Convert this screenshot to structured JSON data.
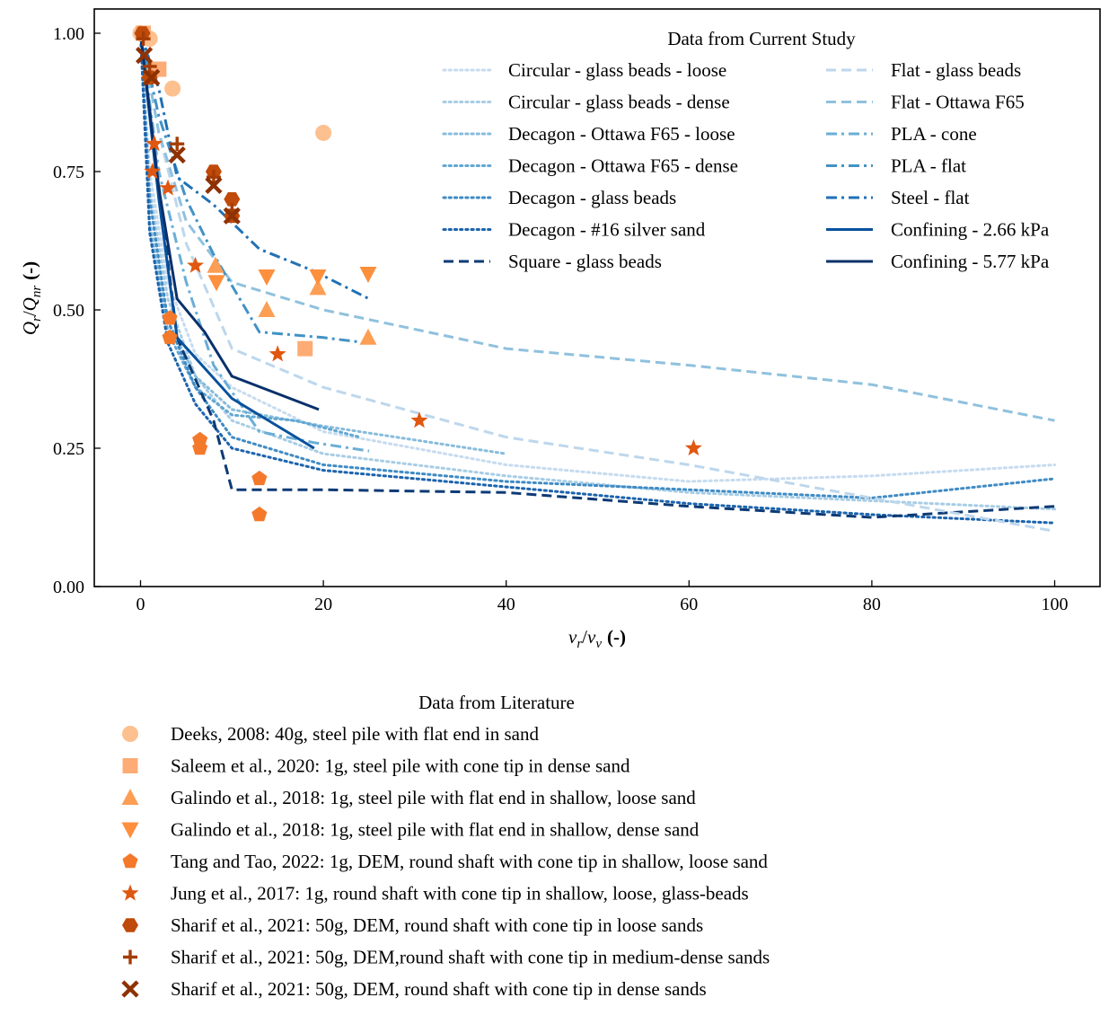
{
  "chart_data": {
    "type": "line",
    "xlabel": {
      "math": "v",
      "sub1": "r",
      "slash": "/",
      "math2": "v",
      "sub2": "v",
      "unit": "(-)"
    },
    "ylabel": {
      "math": "Q",
      "sub1": "r",
      "slash": "/",
      "math2": "Q",
      "sub2": "nr",
      "unit": "(-)"
    },
    "xlim": [
      -5,
      105
    ],
    "ylim": [
      0,
      1.04
    ],
    "xticks": [
      0,
      20,
      40,
      60,
      80,
      100
    ],
    "xtick_labels": [
      "0",
      "20",
      "40",
      "60",
      "80",
      "100"
    ],
    "yticks": [
      0.0,
      0.25,
      0.5,
      0.75,
      1.0
    ],
    "ytick_labels": [
      "0.00",
      "0.25",
      "0.50",
      "0.75",
      "1.00"
    ],
    "legend_current": {
      "title": "Data from Current Study",
      "placement": "top-right"
    },
    "legend_literature": {
      "title": "Data from Literature",
      "placement": "below"
    },
    "series": [
      {
        "name": "Circular - glass beads - loose",
        "color": "#c6dbef",
        "style": "dotted",
        "x": [
          0,
          1,
          3,
          6,
          10,
          20,
          40,
          60,
          80,
          100
        ],
        "y": [
          1.0,
          0.75,
          0.55,
          0.42,
          0.36,
          0.28,
          0.22,
          0.19,
          0.2,
          0.22
        ]
      },
      {
        "name": "Circular - glass beads - dense",
        "color": "#a7cde5",
        "style": "dotted",
        "x": [
          0,
          1,
          3,
          6,
          10,
          20,
          40,
          60,
          80,
          100
        ],
        "y": [
          1.0,
          0.72,
          0.52,
          0.38,
          0.3,
          0.24,
          0.2,
          0.17,
          0.155,
          0.14
        ]
      },
      {
        "name": "Decagon - Ottawa F65 - loose",
        "color": "#86bcdc",
        "style": "dotted",
        "x": [
          0,
          1,
          3,
          6,
          10,
          20,
          40
        ],
        "y": [
          1.0,
          0.66,
          0.48,
          0.38,
          0.32,
          0.29,
          0.24
        ]
      },
      {
        "name": "Decagon - Ottawa F65 - dense",
        "color": "#62a7d3",
        "style": "dotted",
        "x": [
          0,
          1,
          3,
          6,
          10,
          17,
          24
        ],
        "y": [
          1.0,
          0.64,
          0.46,
          0.36,
          0.31,
          0.3,
          0.27
        ]
      },
      {
        "name": "Decagon - glass beads",
        "color": "#3f8bc4",
        "style": "dotted",
        "x": [
          0,
          1,
          3,
          6,
          10,
          20,
          40,
          60,
          80,
          100
        ],
        "y": [
          1.0,
          0.7,
          0.48,
          0.36,
          0.27,
          0.22,
          0.19,
          0.175,
          0.16,
          0.195
        ]
      },
      {
        "name": "Decagon - #16 silver sand",
        "color": "#1c64ad",
        "style": "dotted",
        "x": [
          0,
          1,
          3,
          6,
          10,
          20,
          40,
          60,
          80,
          100
        ],
        "y": [
          1.0,
          0.64,
          0.44,
          0.33,
          0.25,
          0.21,
          0.18,
          0.15,
          0.13,
          0.115
        ]
      },
      {
        "name": "Square - glass beads",
        "color": "#0c3a75",
        "style": "dashed",
        "x": [
          0,
          4,
          8,
          10,
          20,
          40,
          60,
          80,
          100
        ],
        "y": [
          1.0,
          0.45,
          0.3,
          0.175,
          0.175,
          0.17,
          0.145,
          0.125,
          0.145
        ]
      },
      {
        "name": "Flat - glass beads",
        "color": "#bdd7ec",
        "style": "dashed",
        "x": [
          0,
          2,
          5,
          10,
          20,
          40,
          60,
          80,
          100
        ],
        "y": [
          1.0,
          0.82,
          0.62,
          0.43,
          0.36,
          0.27,
          0.22,
          0.16,
          0.1
        ]
      },
      {
        "name": "Flat - Ottawa F65",
        "color": "#8fc1de",
        "style": "dashed",
        "x": [
          0,
          2,
          5,
          10,
          20,
          40,
          60,
          80,
          100
        ],
        "y": [
          1.0,
          0.82,
          0.66,
          0.55,
          0.5,
          0.43,
          0.4,
          0.365,
          0.3
        ]
      },
      {
        "name": "PLA - cone",
        "color": "#6aaed6",
        "style": "dashdot",
        "x": [
          0,
          2,
          5,
          8,
          13,
          19,
          25
        ],
        "y": [
          1.0,
          0.75,
          0.55,
          0.4,
          0.28,
          0.26,
          0.245
        ]
      },
      {
        "name": "PLA - flat",
        "color": "#4292c6",
        "style": "dashdot",
        "x": [
          0,
          2,
          5,
          8,
          13,
          20,
          25
        ],
        "y": [
          1.0,
          0.85,
          0.7,
          0.6,
          0.46,
          0.45,
          0.44
        ]
      },
      {
        "name": "Steel - flat",
        "color": "#2171b5",
        "style": "dashdot",
        "x": [
          0,
          2,
          4,
          8,
          13,
          19,
          25
        ],
        "y": [
          1.0,
          0.9,
          0.74,
          0.69,
          0.61,
          0.57,
          0.52
        ]
      },
      {
        "name": "Confining - 2.66 kPa",
        "color": "#08519c",
        "style": "solid",
        "x": [
          0,
          2,
          4,
          10,
          19
        ],
        "y": [
          1.0,
          0.7,
          0.45,
          0.34,
          0.25
        ]
      },
      {
        "name": "Confining - 5.77 kPa",
        "color": "#08306b",
        "style": "solid",
        "x": [
          0,
          2,
          4,
          7,
          10,
          19.5
        ],
        "y": [
          1.0,
          0.72,
          0.52,
          0.46,
          0.38,
          0.32
        ]
      }
    ],
    "scatter_series": [
      {
        "name": "Deeks, 2008: 40g, steel pile with flat end in sand",
        "marker": "circle",
        "color": "#fdc08f",
        "points": [
          [
            0,
            1.0
          ],
          [
            1,
            0.99
          ],
          [
            3.5,
            0.9
          ],
          [
            20,
            0.82
          ]
        ]
      },
      {
        "name": "Saleem et al., 2020: 1g, steel pile with cone tip in dense sand",
        "marker": "square",
        "color": "#fdac75",
        "points": [
          [
            0.3,
            1.0
          ],
          [
            2,
            0.935
          ],
          [
            18,
            0.43
          ]
        ]
      },
      {
        "name": "Galindo et al., 2018: 1g, steel pile with flat end in shallow, loose sand",
        "marker": "triangle-up",
        "color": "#fd9e55",
        "points": [
          [
            8.2,
            0.58
          ],
          [
            13.8,
            0.5
          ],
          [
            19.4,
            0.54
          ],
          [
            24.9,
            0.45
          ]
        ]
      },
      {
        "name": "Galindo et al., 2018: 1g, steel pile with flat end in shallow, dense sand",
        "marker": "triangle-down",
        "color": "#fd8f3d",
        "points": [
          [
            8.3,
            0.55
          ],
          [
            13.8,
            0.56
          ],
          [
            19.4,
            0.56
          ],
          [
            24.9,
            0.565
          ]
        ]
      },
      {
        "name": "Tang and Tao, 2022: 1g, DEM, round shaft with cone tip in shallow, loose sand",
        "marker": "pentagon",
        "color": "#f4792a",
        "points": [
          [
            3.2,
            0.485
          ],
          [
            3.2,
            0.45
          ],
          [
            6.5,
            0.265
          ],
          [
            6.5,
            0.25
          ],
          [
            13,
            0.195
          ],
          [
            13,
            0.13
          ]
        ]
      },
      {
        "name": "Jung et al., 2017: 1g, round shaft with cone tip in shallow, loose, glass-beads",
        "marker": "star",
        "color": "#e05710",
        "points": [
          [
            1.5,
            0.8
          ],
          [
            1.3,
            0.75
          ],
          [
            3,
            0.72
          ],
          [
            6,
            0.58
          ],
          [
            15,
            0.42
          ],
          [
            30.5,
            0.3
          ],
          [
            60.5,
            0.25
          ]
        ]
      },
      {
        "name": "Sharif et al., 2021: 50g, DEM, round shaft with cone tip in loose sands",
        "marker": "hexagon",
        "color": "#c04a09",
        "points": [
          [
            0.2,
            1.0
          ],
          [
            1,
            0.92
          ],
          [
            8,
            0.75
          ],
          [
            10,
            0.7
          ],
          [
            10,
            0.67
          ]
        ]
      },
      {
        "name": "Sharif et al., 2021: 50g, DEM,round shaft with cone tip in medium-dense sands",
        "marker": "plus",
        "color": "#a53c05",
        "points": [
          [
            0.3,
            0.99
          ],
          [
            1,
            0.94
          ],
          [
            4,
            0.8
          ],
          [
            8,
            0.74
          ],
          [
            10,
            0.68
          ]
        ]
      },
      {
        "name": "Sharif et al., 2021: 50g, DEM, round shaft with cone tip in dense sands",
        "marker": "x",
        "color": "#8e3103",
        "points": [
          [
            0.4,
            0.96
          ],
          [
            1.2,
            0.92
          ],
          [
            4,
            0.78
          ],
          [
            8,
            0.725
          ],
          [
            10,
            0.67
          ]
        ]
      }
    ]
  }
}
